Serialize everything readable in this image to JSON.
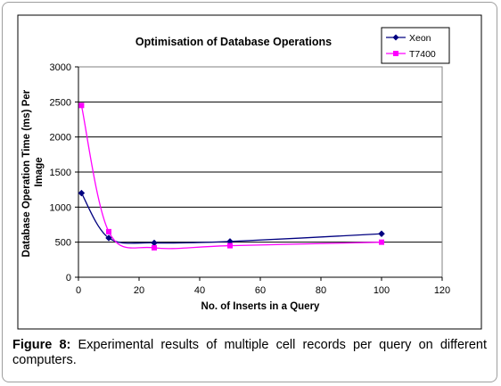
{
  "chart_data": {
    "type": "line",
    "title": "Optimisation of Database Operations",
    "xlabel": "No. of Inserts in a Query",
    "ylabel": "Database Operation Time (ms) Per Image",
    "xlim": [
      0,
      120
    ],
    "ylim": [
      0,
      3000
    ],
    "xticks": [
      0,
      20,
      40,
      60,
      80,
      100,
      120
    ],
    "yticks": [
      0,
      500,
      1000,
      1500,
      2000,
      2500,
      3000
    ],
    "grid": "horizontal",
    "legend_position": "top-right",
    "series": [
      {
        "name": "Xeon",
        "color": "#000080",
        "marker": "diamond",
        "x": [
          1,
          10,
          25,
          50,
          100
        ],
        "y": [
          1200,
          560,
          490,
          510,
          620
        ]
      },
      {
        "name": "T7400",
        "color": "#ff00ff",
        "marker": "square",
        "x": [
          1,
          10,
          25,
          50,
          100
        ],
        "y": [
          2450,
          650,
          420,
          450,
          500
        ]
      }
    ]
  },
  "caption": {
    "label": "Figure 8:",
    "text": " Experimental results of multiple cell records per query on different computers."
  }
}
